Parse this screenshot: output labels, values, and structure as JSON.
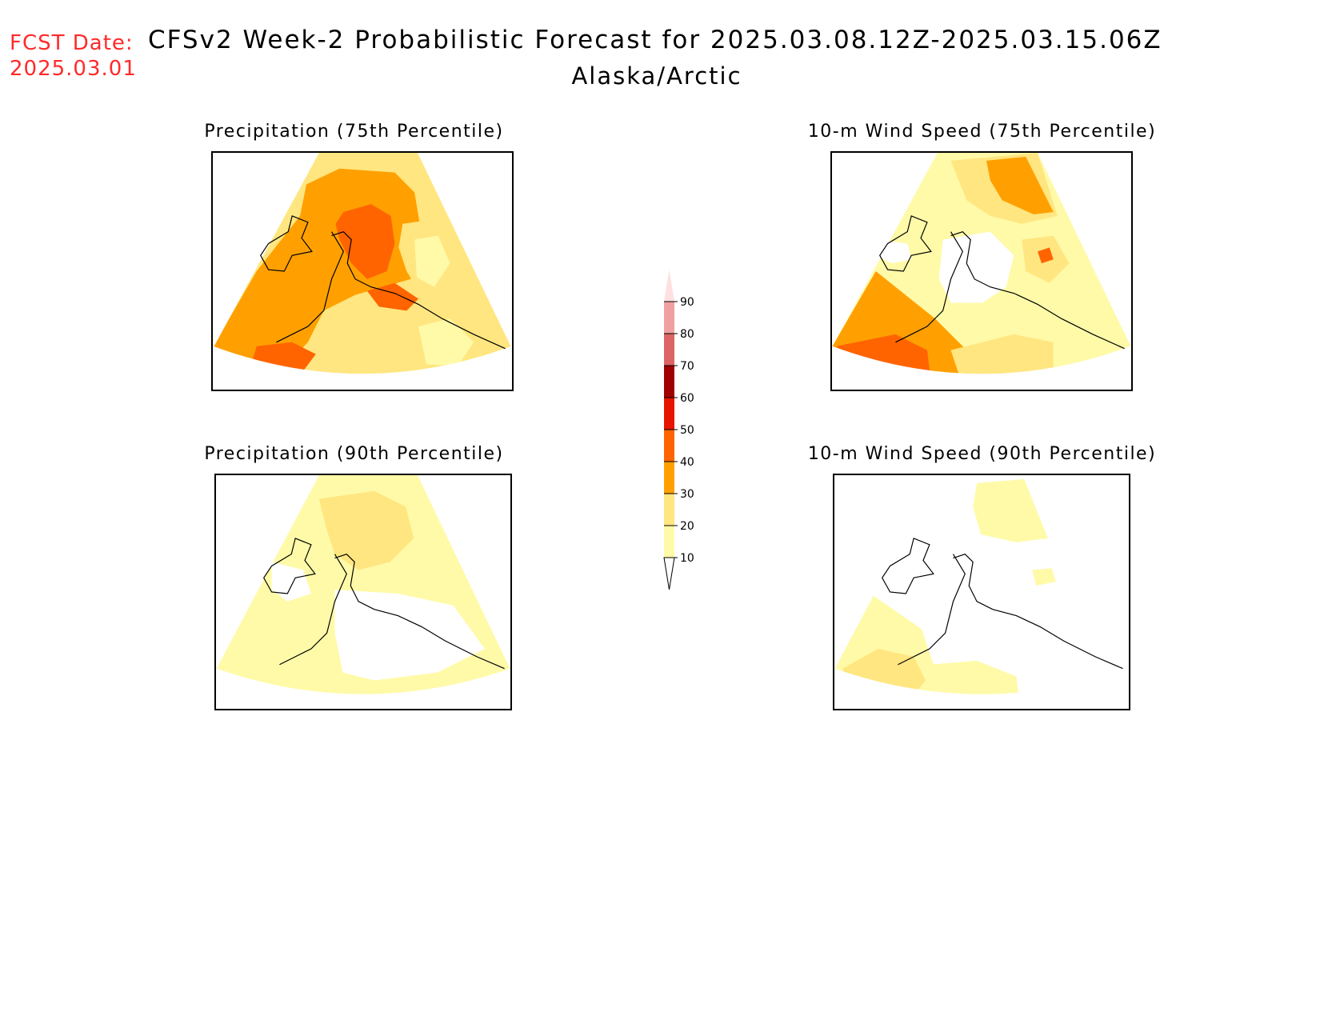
{
  "header": {
    "fcst_label": "FCST Date:",
    "fcst_date": "2025.03.01",
    "title": "CFSv2 Week-2 Probabilistic Forecast for 2025.03.08.12Z-2025.03.15.06Z",
    "region": "Alaska/Arctic"
  },
  "panels": [
    {
      "title": "Precipitation (75th Percentile)"
    },
    {
      "title": "10-m Wind Speed (75th Percentile)"
    },
    {
      "title": "Precipitation (90th Percentile)"
    },
    {
      "title": "10-m Wind Speed (90th Percentile)"
    }
  ],
  "legend": {
    "ticks": [
      "10",
      "20",
      "30",
      "40",
      "50",
      "60",
      "70",
      "80",
      "90"
    ],
    "colors": [
      "#fffaa8",
      "#ffe680",
      "#ffa000",
      "#ff6400",
      "#e61400",
      "#a00000",
      "#dc6464",
      "#f0a0a0",
      "#ffe0e0"
    ],
    "below_color": "#ffffff"
  },
  "colors": {
    "fcst": "#ff2a2a",
    "c10": "#fffaa8",
    "c20": "#ffe680",
    "c30": "#ffa000",
    "c40": "#ff6400",
    "c50": "#e61400"
  }
}
